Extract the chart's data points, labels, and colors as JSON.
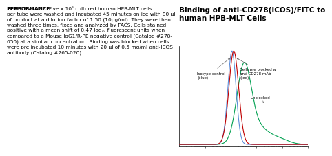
{
  "title_line1": "Binding of anti-CD278(ICOS)/FITC to",
  "title_line2": "human HPB-MLT Cells",
  "title_fontsize": 7.5,
  "title_fontweight": "bold",
  "perf_line1": "PERFORMANCE: Five x 10⁵ cultured human HPB-MLT cells",
  "perf_line2": "per tube were washed and incubated 45 minutes on ice with 80 µl",
  "perf_line3": "of product at a dilution factor of 1:50 (10µg/ml). They were then",
  "perf_line4": "washed three times, fixed and analyzed by FACS. Cells stained",
  "perf_line5": "positive with a mean shift of 0.47 log₁₀ fluorescent units when",
  "perf_line6": "compared to a Mouse IgG1/R-PE negative control (Catalog #278-",
  "perf_line7": "050) at a similar concentration. Binding was blocked when cells",
  "perf_line8": "were pre incubated 10 minutes with 20 µl of 0.5 mg/ml anti-ICOS",
  "perf_line9": "antibody (Catalog #265-020).",
  "color_blue": "#5b8dd9",
  "color_red": "#c00000",
  "color_green": "#00a050",
  "background_color": "#ffffff",
  "annotation_isotype": "Isotype control\n(blue)",
  "annotation_blocked": "Cells pre blocked w\nanti-CD278 mAb\n(red)",
  "annotation_unblocked": "Unblocked"
}
